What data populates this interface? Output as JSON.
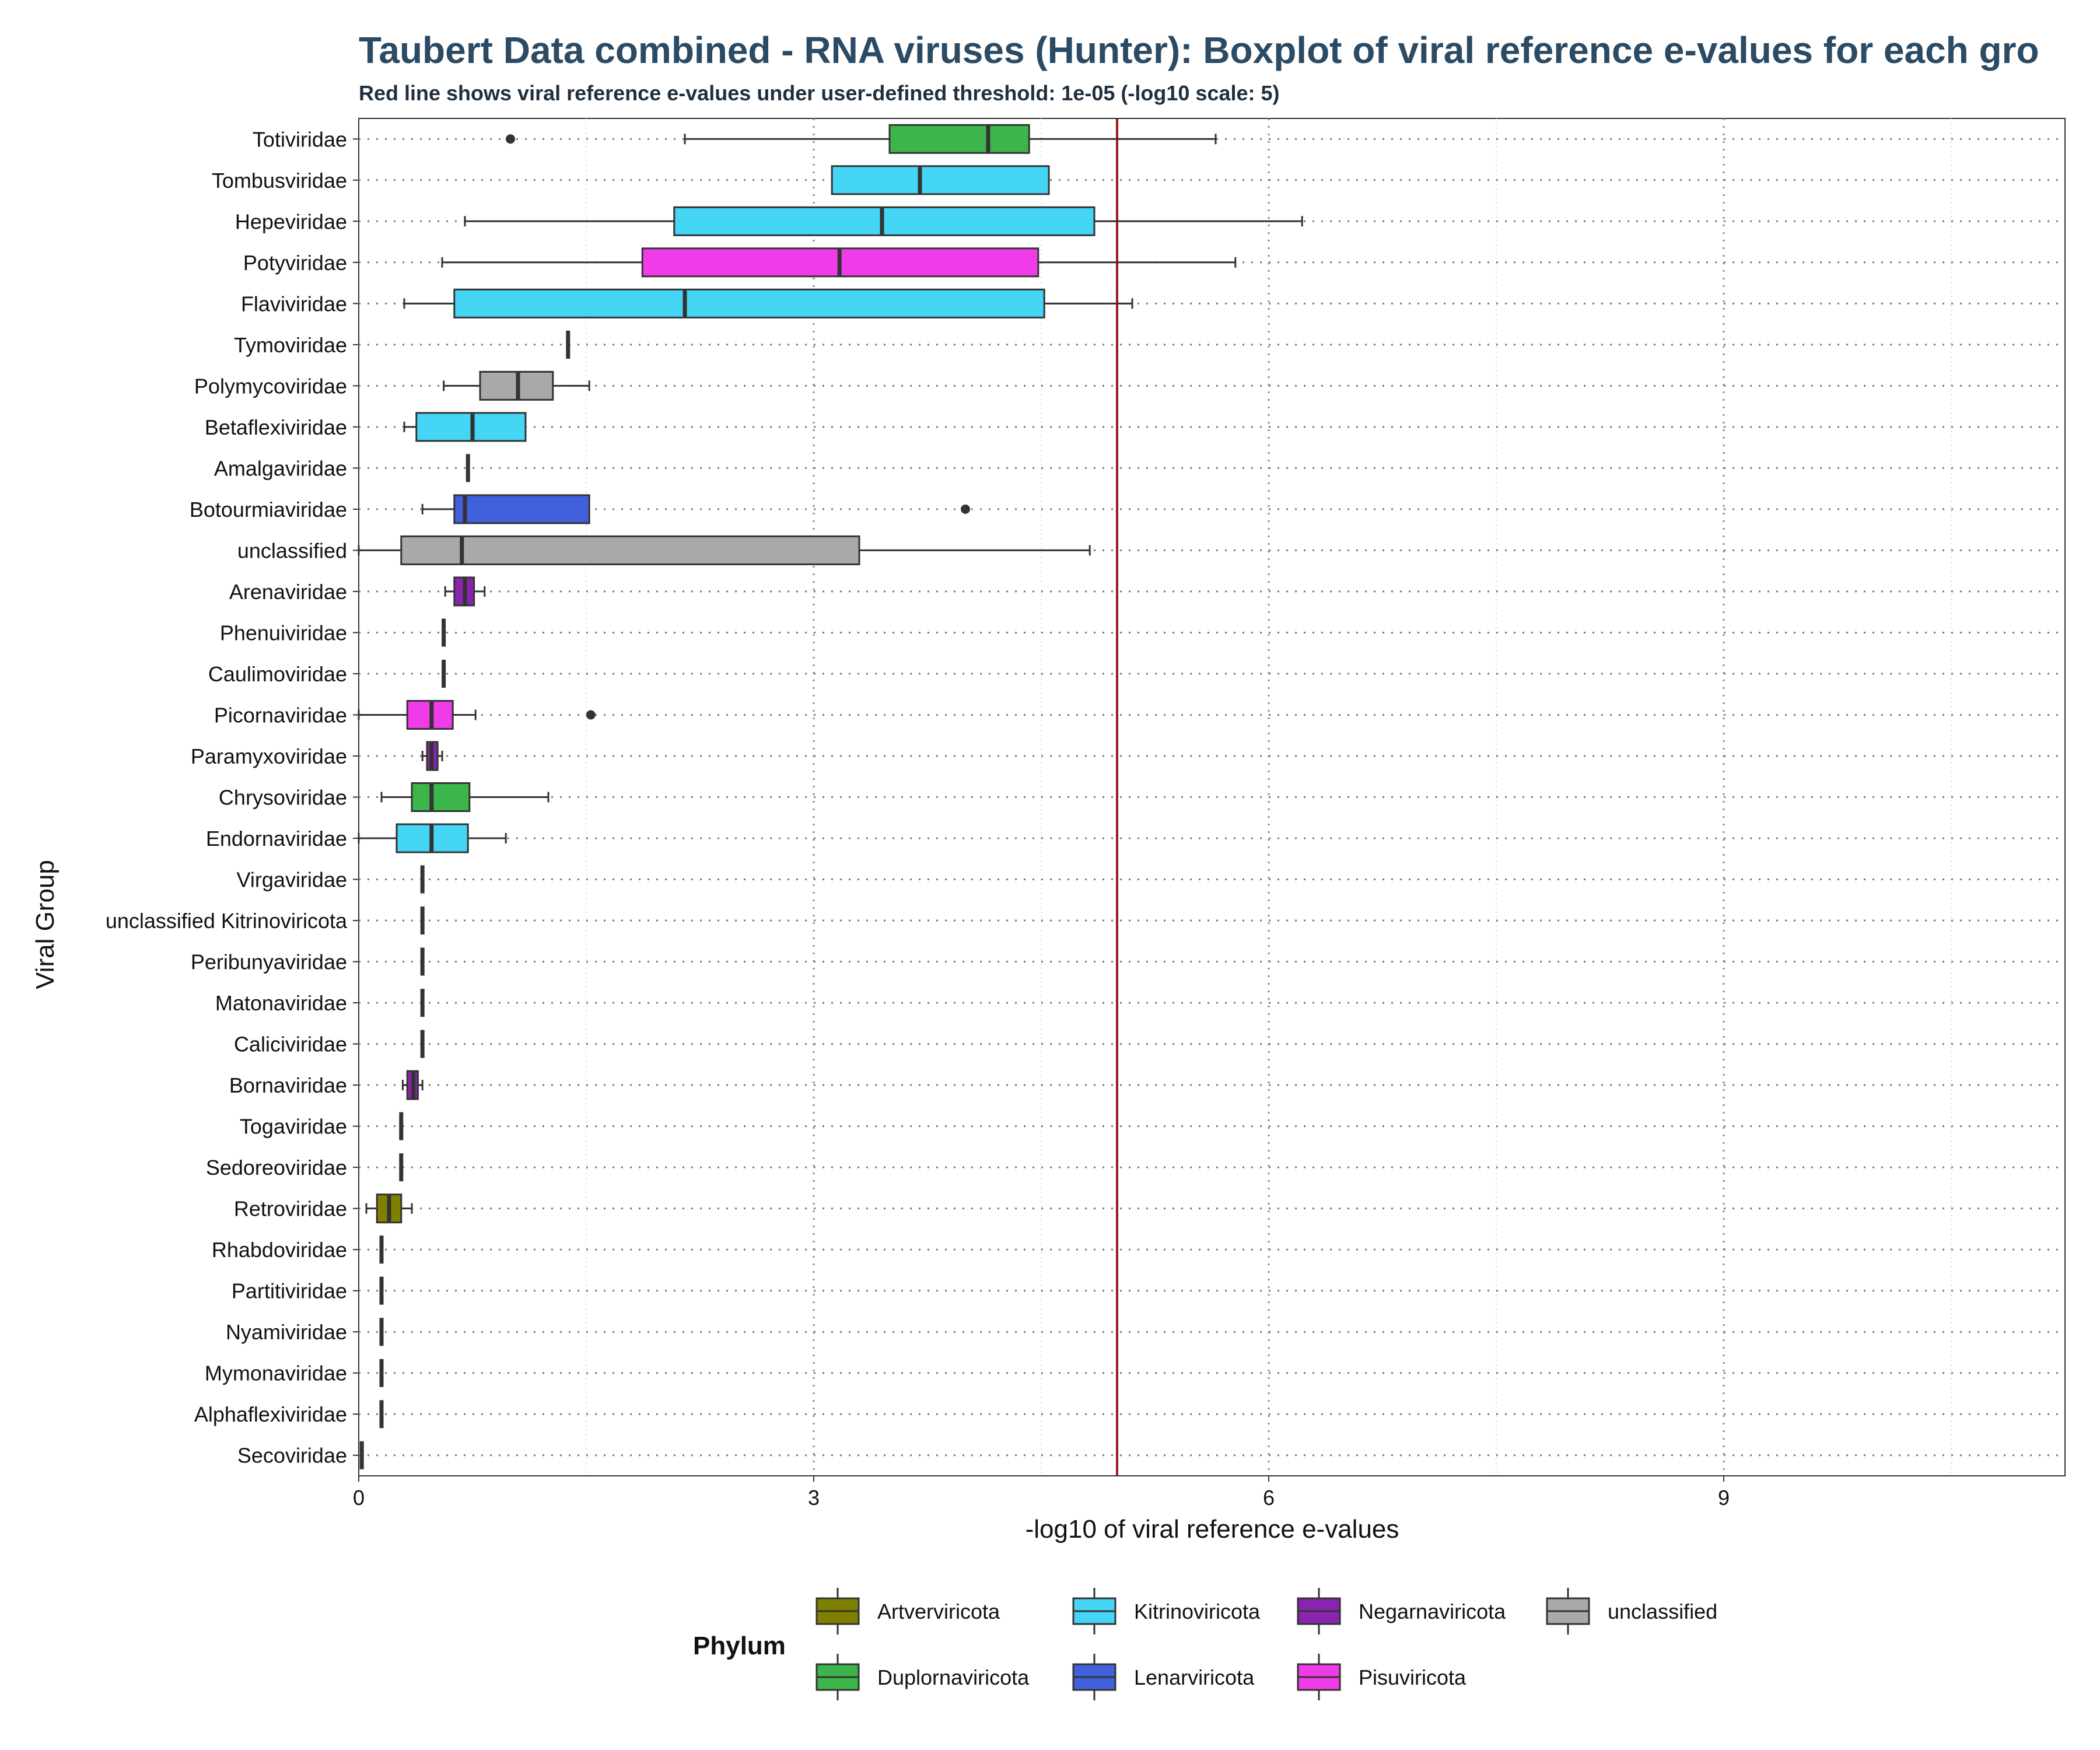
{
  "chart_data": {
    "type": "boxplot",
    "title": "Taubert Data combined - RNA viruses (Hunter): Boxplot of viral reference e-values for each gro",
    "subtitle": "Red line shows viral reference e-values under user-defined threshold: 1e-05 (-log10 scale: 5)",
    "xlabel": "-log10 of viral reference e-values",
    "ylabel": "Viral Group",
    "xlim": [
      0,
      11.2
    ],
    "xticks": [
      "0",
      "3",
      "6",
      "9"
    ],
    "xtick_values": [
      0,
      3,
      6,
      9
    ],
    "threshold": 5,
    "threshold_color": "#9b1b1b",
    "grid": true,
    "legend": {
      "title": "Phylum",
      "position": "bottom",
      "items": [
        {
          "label": "Artverviricota",
          "color": "#808000"
        },
        {
          "label": "Duplornaviricota",
          "color": "#3cb54a"
        },
        {
          "label": "Kitrinoviricota",
          "color": "#45d5f5"
        },
        {
          "label": "Lenarviricota",
          "color": "#4160dc"
        },
        {
          "label": "Negarnaviricota",
          "color": "#8a24b0"
        },
        {
          "label": "Pisuviricota",
          "color": "#f03be8"
        },
        {
          "label": "unclassified",
          "color": "#a9a9a9"
        }
      ]
    },
    "categories": [
      {
        "name": "Totiviridae",
        "phylum": "Duplornaviricota",
        "color": "#3cb54a",
        "whisker_low": 2.15,
        "q1": 3.5,
        "median": 4.15,
        "q3": 4.42,
        "whisker_high": 5.65,
        "outliers": [
          1.0
        ]
      },
      {
        "name": "Tombusviridae",
        "phylum": "Kitrinoviricota",
        "color": "#45d5f5",
        "whisker_low": 3.12,
        "q1": 3.12,
        "median": 3.7,
        "q3": 4.55,
        "whisker_high": 4.55,
        "outliers": []
      },
      {
        "name": "Hepeviridae",
        "phylum": "Kitrinoviricota",
        "color": "#45d5f5",
        "whisker_low": 0.7,
        "q1": 2.08,
        "median": 3.45,
        "q3": 4.85,
        "whisker_high": 6.22,
        "outliers": []
      },
      {
        "name": "Potyviridae",
        "phylum": "Pisuviricota",
        "color": "#f03be8",
        "whisker_low": 0.55,
        "q1": 1.87,
        "median": 3.17,
        "q3": 4.48,
        "whisker_high": 5.78,
        "outliers": []
      },
      {
        "name": "Flaviviridae",
        "phylum": "Kitrinoviricota",
        "color": "#45d5f5",
        "whisker_low": 0.3,
        "q1": 0.63,
        "median": 2.15,
        "q3": 4.52,
        "whisker_high": 5.1,
        "outliers": []
      },
      {
        "name": "Tymoviridae",
        "phylum": "Kitrinoviricota",
        "color": "#45d5f5",
        "whisker_low": 1.38,
        "q1": 1.38,
        "median": 1.38,
        "q3": 1.38,
        "whisker_high": 1.38,
        "outliers": []
      },
      {
        "name": "Polymycoviridae",
        "phylum": "unclassified",
        "color": "#a9a9a9",
        "whisker_low": 0.56,
        "q1": 0.8,
        "median": 1.05,
        "q3": 1.28,
        "whisker_high": 1.52,
        "outliers": []
      },
      {
        "name": "Betaflexiviridae",
        "phylum": "Kitrinoviricota",
        "color": "#45d5f5",
        "whisker_low": 0.3,
        "q1": 0.38,
        "median": 0.75,
        "q3": 1.1,
        "whisker_high": 1.1,
        "outliers": []
      },
      {
        "name": "Amalgaviridae",
        "phylum": "Duplornaviricota",
        "color": "#3cb54a",
        "whisker_low": 0.72,
        "q1": 0.72,
        "median": 0.72,
        "q3": 0.72,
        "whisker_high": 0.72,
        "outliers": []
      },
      {
        "name": "Botourmiaviridae",
        "phylum": "Lenarviricota",
        "color": "#4160dc",
        "whisker_low": 0.42,
        "q1": 0.63,
        "median": 0.7,
        "q3": 1.52,
        "whisker_high": 1.52,
        "outliers": [
          4.0
        ]
      },
      {
        "name": "unclassified",
        "phylum": "unclassified",
        "color": "#a9a9a9",
        "whisker_low": 0.0,
        "q1": 0.28,
        "median": 0.68,
        "q3": 3.3,
        "whisker_high": 4.82,
        "outliers": []
      },
      {
        "name": "Arenaviridae",
        "phylum": "Negarnaviricota",
        "color": "#8a24b0",
        "whisker_low": 0.57,
        "q1": 0.63,
        "median": 0.7,
        "q3": 0.76,
        "whisker_high": 0.83,
        "outliers": []
      },
      {
        "name": "Phenuiviridae",
        "phylum": "Negarnaviricota",
        "color": "#8a24b0",
        "whisker_low": 0.56,
        "q1": 0.56,
        "median": 0.56,
        "q3": 0.56,
        "whisker_high": 0.56,
        "outliers": []
      },
      {
        "name": "Caulimoviridae",
        "phylum": "Artverviricota",
        "color": "#808000",
        "whisker_low": 0.56,
        "q1": 0.56,
        "median": 0.56,
        "q3": 0.56,
        "whisker_high": 0.56,
        "outliers": []
      },
      {
        "name": "Picornaviridae",
        "phylum": "Pisuviricota",
        "color": "#f03be8",
        "whisker_low": 0.0,
        "q1": 0.32,
        "median": 0.48,
        "q3": 0.62,
        "whisker_high": 0.77,
        "outliers": [
          1.53
        ]
      },
      {
        "name": "Paramyxoviridae",
        "phylum": "Negarnaviricota",
        "color": "#8a24b0",
        "whisker_low": 0.42,
        "q1": 0.45,
        "median": 0.48,
        "q3": 0.52,
        "whisker_high": 0.55,
        "outliers": []
      },
      {
        "name": "Chrysoviridae",
        "phylum": "Duplornaviricota",
        "color": "#3cb54a",
        "whisker_low": 0.15,
        "q1": 0.35,
        "median": 0.48,
        "q3": 0.73,
        "whisker_high": 1.25,
        "outliers": []
      },
      {
        "name": "Endornaviridae",
        "phylum": "Kitrinoviricota",
        "color": "#45d5f5",
        "whisker_low": 0.0,
        "q1": 0.25,
        "median": 0.48,
        "q3": 0.72,
        "whisker_high": 0.97,
        "outliers": []
      },
      {
        "name": "Virgaviridae",
        "phylum": "Kitrinoviricota",
        "color": "#45d5f5",
        "whisker_low": 0.42,
        "q1": 0.42,
        "median": 0.42,
        "q3": 0.42,
        "whisker_high": 0.42,
        "outliers": []
      },
      {
        "name": "unclassified Kitrinoviricota",
        "phylum": "Kitrinoviricota",
        "color": "#45d5f5",
        "whisker_low": 0.42,
        "q1": 0.42,
        "median": 0.42,
        "q3": 0.42,
        "whisker_high": 0.42,
        "outliers": []
      },
      {
        "name": "Peribunyaviridae",
        "phylum": "Negarnaviricota",
        "color": "#8a24b0",
        "whisker_low": 0.42,
        "q1": 0.42,
        "median": 0.42,
        "q3": 0.42,
        "whisker_high": 0.42,
        "outliers": []
      },
      {
        "name": "Matonaviridae",
        "phylum": "Kitrinoviricota",
        "color": "#45d5f5",
        "whisker_low": 0.42,
        "q1": 0.42,
        "median": 0.42,
        "q3": 0.42,
        "whisker_high": 0.42,
        "outliers": []
      },
      {
        "name": "Caliciviridae",
        "phylum": "Pisuviricota",
        "color": "#f03be8",
        "whisker_low": 0.42,
        "q1": 0.42,
        "median": 0.42,
        "q3": 0.42,
        "whisker_high": 0.42,
        "outliers": []
      },
      {
        "name": "Bornaviridae",
        "phylum": "Negarnaviricota",
        "color": "#8a24b0",
        "whisker_low": 0.29,
        "q1": 0.32,
        "median": 0.36,
        "q3": 0.39,
        "whisker_high": 0.42,
        "outliers": []
      },
      {
        "name": "Togaviridae",
        "phylum": "Kitrinoviricota",
        "color": "#45d5f5",
        "whisker_low": 0.28,
        "q1": 0.28,
        "median": 0.28,
        "q3": 0.28,
        "whisker_high": 0.28,
        "outliers": []
      },
      {
        "name": "Sedoreoviridae",
        "phylum": "Duplornaviricota",
        "color": "#3cb54a",
        "whisker_low": 0.28,
        "q1": 0.28,
        "median": 0.28,
        "q3": 0.28,
        "whisker_high": 0.28,
        "outliers": []
      },
      {
        "name": "Retroviridae",
        "phylum": "Artverviricota",
        "color": "#808000",
        "whisker_low": 0.05,
        "q1": 0.12,
        "median": 0.2,
        "q3": 0.28,
        "whisker_high": 0.35,
        "outliers": []
      },
      {
        "name": "Rhabdoviridae",
        "phylum": "Negarnaviricota",
        "color": "#8a24b0",
        "whisker_low": 0.15,
        "q1": 0.15,
        "median": 0.15,
        "q3": 0.15,
        "whisker_high": 0.15,
        "outliers": []
      },
      {
        "name": "Partitiviridae",
        "phylum": "Pisuviricota",
        "color": "#f03be8",
        "whisker_low": 0.15,
        "q1": 0.15,
        "median": 0.15,
        "q3": 0.15,
        "whisker_high": 0.15,
        "outliers": []
      },
      {
        "name": "Nyamiviridae",
        "phylum": "Negarnaviricota",
        "color": "#8a24b0",
        "whisker_low": 0.15,
        "q1": 0.15,
        "median": 0.15,
        "q3": 0.15,
        "whisker_high": 0.15,
        "outliers": []
      },
      {
        "name": "Mymonaviridae",
        "phylum": "Negarnaviricota",
        "color": "#8a24b0",
        "whisker_low": 0.15,
        "q1": 0.15,
        "median": 0.15,
        "q3": 0.15,
        "whisker_high": 0.15,
        "outliers": []
      },
      {
        "name": "Alphaflexiviridae",
        "phylum": "Kitrinoviricota",
        "color": "#45d5f5",
        "whisker_low": 0.15,
        "q1": 0.15,
        "median": 0.15,
        "q3": 0.15,
        "whisker_high": 0.15,
        "outliers": []
      },
      {
        "name": "Secoviridae",
        "phylum": "Pisuviricota",
        "color": "#f03be8",
        "whisker_low": 0.02,
        "q1": 0.02,
        "median": 0.02,
        "q3": 0.02,
        "whisker_high": 0.02,
        "outliers": []
      }
    ]
  }
}
